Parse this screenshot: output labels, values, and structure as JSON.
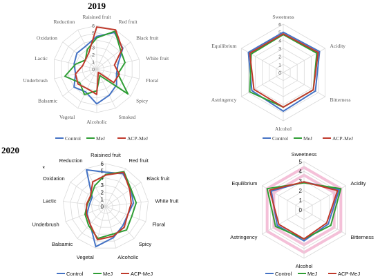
{
  "years": {
    "y2019": "2019",
    "y2020": "2020"
  },
  "colors": {
    "Control": "#4472C4",
    "MeJ": "#2E9E34",
    "ACP-MeJ": "#C0392B",
    "grid": "#d9d9d9",
    "pinkband": "#f4c0d8"
  },
  "chart_data": [
    {
      "id": "aroma-2019",
      "type": "radar",
      "year": "2019",
      "axes": [
        "Raisined fruit",
        "Red fruit",
        "Black fruit",
        "White fruit",
        "Floral",
        "Spicy",
        "Smoked",
        "Alcoholic",
        "Vegetal",
        "Balsamic",
        "Underbrush",
        "Lactic",
        "Oxidation",
        "Reduction"
      ],
      "ticks": [
        "0",
        "1",
        "2",
        "3",
        "4",
        "5",
        "6"
      ],
      "rmax": 6,
      "legend_position": "bottom",
      "series": [
        {
          "name": "Control",
          "values": [
            4.5,
            5.6,
            4.6,
            3.0,
            2.8,
            3.5,
            4.0,
            4.8,
            3.5,
            4.0,
            3.0,
            3.2,
            3.5,
            3.5
          ]
        },
        {
          "name": "MeJ",
          "values": [
            4.3,
            5.8,
            4.2,
            4.0,
            3.0,
            5.5,
            1.0,
            3.0,
            3.9,
            3.0,
            4.5,
            3.0,
            2.0,
            3.0
          ]
        },
        {
          "name": "ACP-MeJ",
          "values": [
            5.8,
            6.0,
            4.5,
            2.5,
            3.2,
            3.0,
            0.5,
            3.5,
            3.0,
            3.3,
            3.0,
            2.0,
            2.0,
            2.5
          ]
        }
      ]
    },
    {
      "id": "taste-2019",
      "type": "radar",
      "year": "2019",
      "axes": [
        "Sweetness",
        "Acidity",
        "Bitterness",
        "Alcohol",
        "Astringency",
        "Equilibrium"
      ],
      "ticks": [
        "0",
        "1",
        "2",
        "3",
        "4",
        "5",
        "6"
      ],
      "rmax": 6,
      "legend_position": "bottom",
      "series": [
        {
          "name": "Control",
          "values": [
            5.0,
            5.2,
            4.6,
            4.8,
            4.5,
            5.0
          ]
        },
        {
          "name": "MeJ",
          "values": [
            4.7,
            4.8,
            4.3,
            4.3,
            4.8,
            4.6
          ]
        },
        {
          "name": "ACP-MeJ",
          "values": [
            4.8,
            5.0,
            4.3,
            4.3,
            4.2,
            4.8
          ]
        }
      ]
    },
    {
      "id": "aroma-2020",
      "type": "radar",
      "year": "2020",
      "axes": [
        "Raisined fruit",
        "Red fruit",
        "Black fruit",
        "White fruit",
        "Floral",
        "Spicy",
        "Alcoholic",
        "Vegetal",
        "Balsamic",
        "Underbrush",
        "Lactic",
        "Oxidation",
        "Reduction"
      ],
      "ticks": [
        "0",
        "1",
        "2",
        "3",
        "4",
        "5",
        "6"
      ],
      "rmax": 6,
      "legend_position": "bottom",
      "annotations": [
        {
          "axis": "Reduction",
          "text": "*"
        }
      ],
      "series": [
        {
          "name": "Control",
          "values": [
            4.8,
            5.2,
            4.3,
            3.9,
            3.3,
            3.6,
            4.5,
            5.8,
            3.3,
            2.8,
            2.3,
            2.3,
            5.8
          ]
        },
        {
          "name": "MeJ",
          "values": [
            4.5,
            5.5,
            4.3,
            4.3,
            3.9,
            4.4,
            4.0,
            4.6,
            3.6,
            3.1,
            2.6,
            2.5,
            3.3
          ]
        },
        {
          "name": "ACP-MeJ",
          "values": [
            4.4,
            5.4,
            4.1,
            3.6,
            3.3,
            3.9,
            4.3,
            4.8,
            3.3,
            2.9,
            2.7,
            2.6,
            3.9
          ]
        }
      ]
    },
    {
      "id": "taste-2020",
      "type": "radar",
      "year": "2020",
      "axes": [
        "Sweetness",
        "Acidity",
        "Bitterness",
        "Alcohol",
        "Astringency",
        "Equilibrium"
      ],
      "ticks": [
        "0",
        "1",
        "2",
        "3",
        "4",
        "5"
      ],
      "rmax": 5,
      "legend_position": "bottom",
      "series": [
        {
          "name": "Control",
          "values": [
            2.9,
            4.2,
            2.9,
            3.2,
            3.2,
            3.9
          ]
        },
        {
          "name": "MeJ",
          "values": [
            2.8,
            4.4,
            3.2,
            3.0,
            3.4,
            4.4
          ]
        },
        {
          "name": "ACP-MeJ",
          "values": [
            2.9,
            4.0,
            2.7,
            3.0,
            3.0,
            4.1
          ]
        }
      ]
    }
  ]
}
